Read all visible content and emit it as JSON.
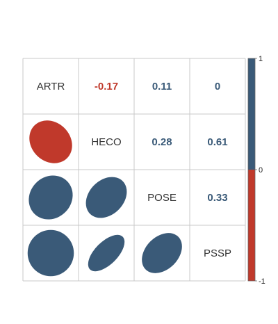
{
  "colors": {
    "positive": "#3A5A78",
    "negative": "#C0392B",
    "grid": "#C8C8C8",
    "label": "#333333"
  },
  "chart_data": {
    "type": "heatmap",
    "variables": [
      "ARTR",
      "HECO",
      "POSE",
      "PSSP"
    ],
    "correlation_matrix": [
      [
        1.0,
        -0.17,
        0.11,
        0.0
      ],
      [
        -0.17,
        1.0,
        0.28,
        0.61
      ],
      [
        0.11,
        0.28,
        1.0,
        0.33
      ],
      [
        0.0,
        0.61,
        0.33,
        1.0
      ]
    ],
    "upper_labels": [
      [
        "",
        "-0.17",
        "0.11",
        "0"
      ],
      [
        "",
        "",
        "0.28",
        "0.61"
      ],
      [
        "",
        "",
        "",
        "0.33"
      ],
      [
        "",
        "",
        "",
        ""
      ]
    ],
    "lower_display": "ellipse",
    "upper_display": "number",
    "diagonal_display": "variable-name",
    "colorbar": {
      "range": [
        -1,
        1
      ],
      "ticks": [
        "1",
        "0",
        "-1"
      ],
      "placement": "right"
    },
    "grid": true
  }
}
